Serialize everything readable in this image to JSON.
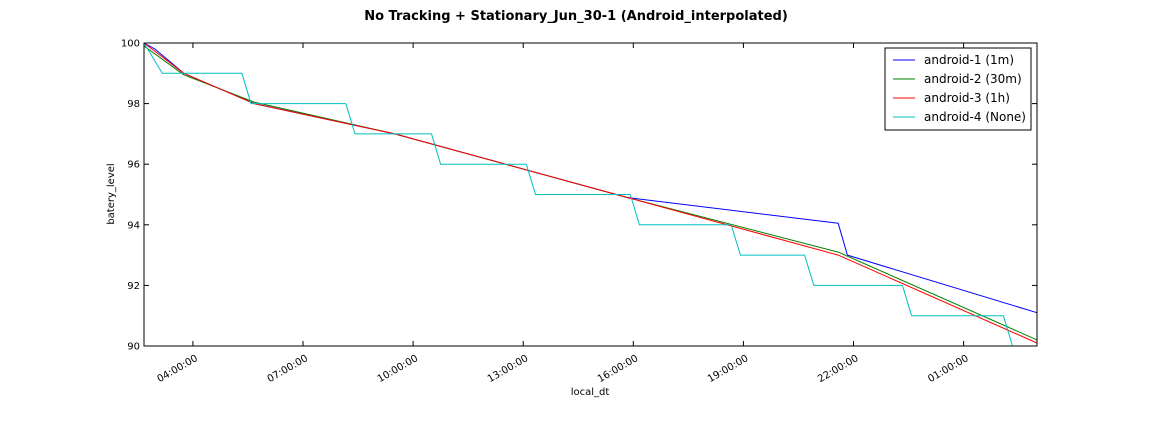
{
  "chart_data": {
    "type": "line",
    "title": "No Tracking + Stationary_Jun_30-1 (Android_interpolated)",
    "xlabel": "local_dt",
    "ylabel": "batery_level",
    "xlim": [
      "2016-06-30 02:40",
      "2016-07-01 03:00"
    ],
    "ylim": [
      90,
      100
    ],
    "x_ticks": [
      {
        "t": "2016-06-30 04:00",
        "label": "04:00:00"
      },
      {
        "t": "2016-06-30 07:00",
        "label": "07:00:00"
      },
      {
        "t": "2016-06-30 10:00",
        "label": "10:00:00"
      },
      {
        "t": "2016-06-30 13:00",
        "label": "13:00:00"
      },
      {
        "t": "2016-06-30 16:00",
        "label": "16:00:00"
      },
      {
        "t": "2016-06-30 19:00",
        "label": "19:00:00"
      },
      {
        "t": "2016-06-30 22:00",
        "label": "22:00:00"
      },
      {
        "t": "2016-07-01 01:00",
        "label": "01:00:00"
      }
    ],
    "y_ticks": [
      90,
      92,
      94,
      96,
      98,
      100
    ],
    "legend_position": "top-right",
    "grid": false,
    "series": [
      {
        "name": "android-1 (1m)",
        "color": "#0000ff",
        "points": [
          [
            "2016-06-30 02:40",
            100
          ],
          [
            "2016-06-30 02:58",
            99.8
          ],
          [
            "2016-06-30 03:45",
            99
          ],
          [
            "2016-06-30 05:40",
            98
          ],
          [
            "2016-06-30 09:30",
            97
          ],
          [
            "2016-06-30 15:50",
            94.9
          ],
          [
            "2016-06-30 21:35",
            94.05
          ],
          [
            "2016-06-30 21:50",
            93
          ],
          [
            "2016-07-01 03:00",
            91.1
          ]
        ]
      },
      {
        "name": "android-2 (30m)",
        "color": "#008000",
        "points": [
          [
            "2016-06-30 02:40",
            99.9
          ],
          [
            "2016-06-30 03:45",
            98.95
          ],
          [
            "2016-06-30 05:40",
            98.05
          ],
          [
            "2016-06-30 09:30",
            97
          ],
          [
            "2016-06-30 15:50",
            94.9
          ],
          [
            "2016-06-30 21:35",
            93.1
          ],
          [
            "2016-07-01 03:00",
            90.2
          ]
        ]
      },
      {
        "name": "android-3 (1h)",
        "color": "#ff0000",
        "points": [
          [
            "2016-06-30 02:40",
            100
          ],
          [
            "2016-06-30 03:45",
            99
          ],
          [
            "2016-06-30 05:40",
            98
          ],
          [
            "2016-06-30 09:30",
            97
          ],
          [
            "2016-06-30 15:50",
            94.9
          ],
          [
            "2016-06-30 21:35",
            93
          ],
          [
            "2016-07-01 03:00",
            90.1
          ]
        ]
      },
      {
        "name": "android-4 (None)",
        "color": "#00bfbf",
        "points": [
          [
            "2016-06-30 02:40",
            100
          ],
          [
            "2016-06-30 03:10",
            99
          ],
          [
            "2016-06-30 05:20",
            99
          ],
          [
            "2016-06-30 05:35",
            98
          ],
          [
            "2016-06-30 08:10",
            98
          ],
          [
            "2016-06-30 08:25",
            97
          ],
          [
            "2016-06-30 10:30",
            97
          ],
          [
            "2016-06-30 10:45",
            96
          ],
          [
            "2016-06-30 13:05",
            96
          ],
          [
            "2016-06-30 13:20",
            95
          ],
          [
            "2016-06-30 15:55",
            95
          ],
          [
            "2016-06-30 16:10",
            94
          ],
          [
            "2016-06-30 18:40",
            94
          ],
          [
            "2016-06-30 18:55",
            93
          ],
          [
            "2016-06-30 20:40",
            93
          ],
          [
            "2016-06-30 20:55",
            92
          ],
          [
            "2016-06-30 23:20",
            92
          ],
          [
            "2016-06-30 23:35",
            91
          ],
          [
            "2016-07-01 02:05",
            91
          ],
          [
            "2016-07-01 02:20",
            90
          ],
          [
            "2016-07-01 03:00",
            90
          ]
        ]
      }
    ]
  }
}
